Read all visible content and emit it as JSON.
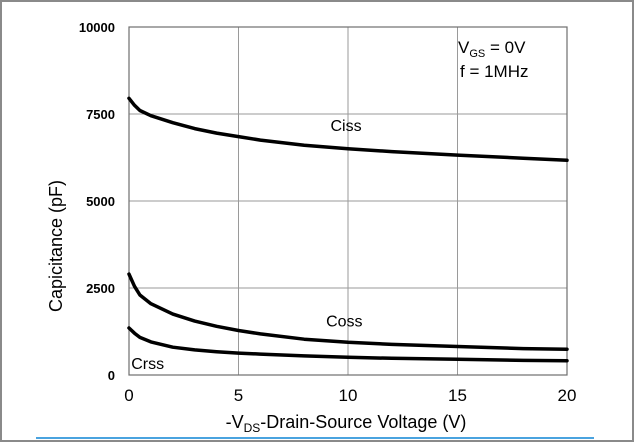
{
  "chart_data": {
    "type": "line",
    "xlabel_parts": [
      "-V",
      "DS",
      "-Drain-Source Voltage (V)"
    ],
    "ylabel": "Capicitance (pF)",
    "xlim": [
      0,
      20
    ],
    "ylim": [
      0,
      10000
    ],
    "x_ticks": [
      "0",
      "5",
      "10",
      "15",
      "20"
    ],
    "y_ticks": [
      "0",
      "2500",
      "5000",
      "7500",
      "10000"
    ],
    "grid": true,
    "conditions": {
      "vgs_parts": [
        "V",
        "GS",
        " = 0V"
      ],
      "freq": "f = 1MHz"
    },
    "series": [
      {
        "name": "Ciss",
        "x": [
          0,
          0.25,
          0.5,
          1,
          2,
          3,
          4,
          5,
          6,
          8,
          10,
          12,
          15,
          18,
          20
        ],
        "y": [
          7950,
          7750,
          7600,
          7450,
          7250,
          7080,
          6950,
          6850,
          6750,
          6600,
          6500,
          6420,
          6320,
          6230,
          6170
        ]
      },
      {
        "name": "Coss",
        "x": [
          0,
          0.25,
          0.5,
          1,
          2,
          3,
          4,
          5,
          6,
          8,
          10,
          12,
          15,
          18,
          20
        ],
        "y": [
          2900,
          2550,
          2300,
          2050,
          1750,
          1550,
          1400,
          1280,
          1180,
          1030,
          940,
          880,
          820,
          760,
          740
        ]
      },
      {
        "name": "Crss",
        "x": [
          0,
          0.25,
          0.5,
          1,
          2,
          3,
          4,
          5,
          6,
          8,
          10,
          12,
          15,
          18,
          20
        ],
        "y": [
          1350,
          1200,
          1080,
          950,
          800,
          720,
          670,
          630,
          600,
          550,
          510,
          480,
          450,
          420,
          410
        ]
      }
    ]
  }
}
